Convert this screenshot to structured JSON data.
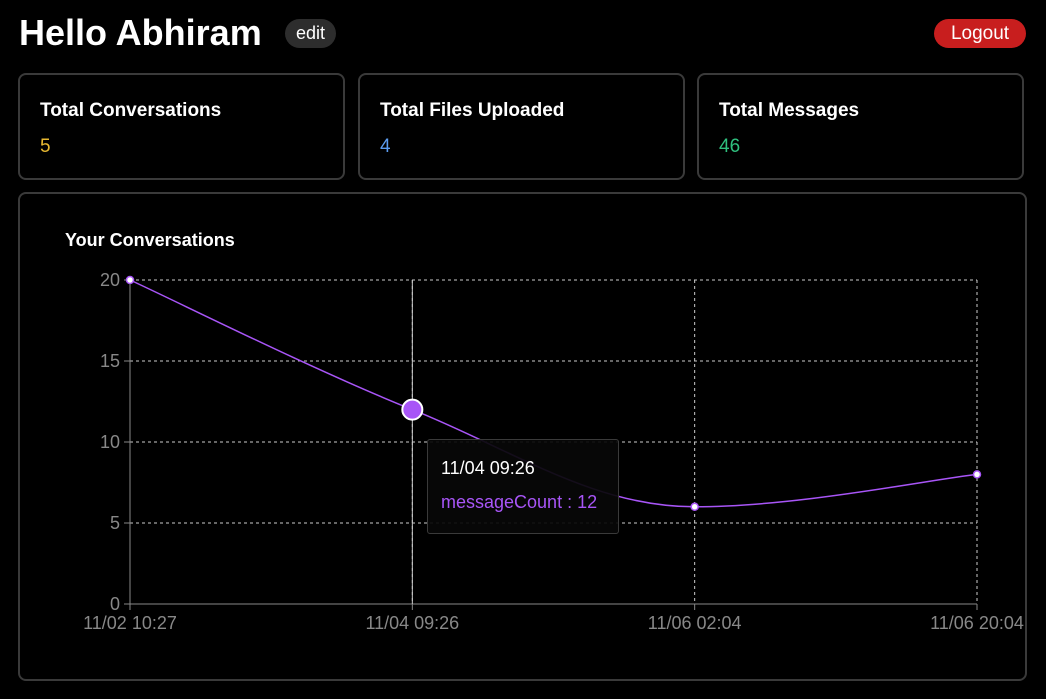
{
  "header": {
    "greeting": "Hello Abhiram",
    "edit_label": "edit",
    "logout_label": "Logout"
  },
  "stats": [
    {
      "title": "Total Conversations",
      "value": "5",
      "color": "#e8b931"
    },
    {
      "title": "Total Files Uploaded",
      "value": "4",
      "color": "#5b9cf0"
    },
    {
      "title": "Total Messages",
      "value": "46",
      "color": "#2fbf7e"
    }
  ],
  "chart": {
    "title": "Your Conversations"
  },
  "tooltip": {
    "label": "11/04 09:26",
    "series_name": "messageCount",
    "value": "12",
    "text": "messageCount : 12"
  },
  "colors": {
    "accent": "#a855f7",
    "grid": "#cccccc",
    "axis_text": "#888888",
    "card_border": "#3a3a3a"
  },
  "chart_data": {
    "type": "line",
    "title": "Your Conversations",
    "x": [
      "11/02 10:27",
      "11/04 09:26",
      "11/06 02:04",
      "11/06 20:04"
    ],
    "series": [
      {
        "name": "messageCount",
        "values": [
          20,
          12,
          6,
          8
        ]
      }
    ],
    "ylim": [
      0,
      20
    ],
    "yticks": [
      0,
      5,
      10,
      15,
      20
    ],
    "grid": true,
    "active_index": 1
  }
}
